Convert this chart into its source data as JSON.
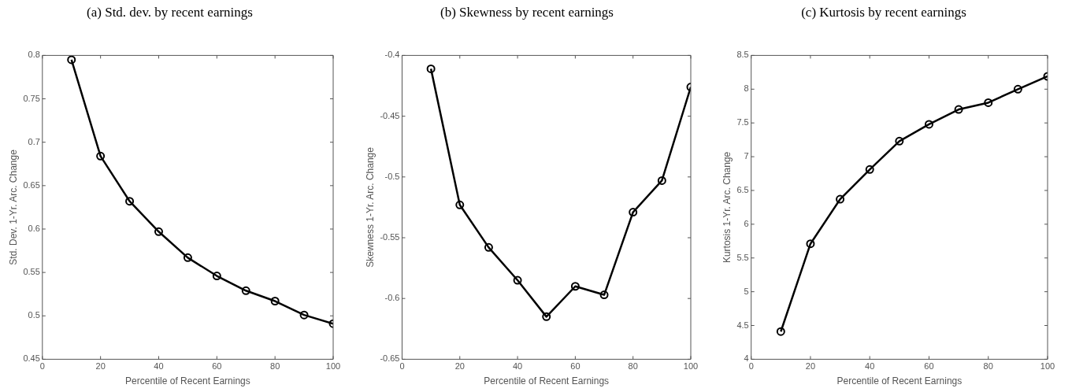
{
  "chart_data": [
    {
      "type": "line",
      "title": "(a) Std. dev. by recent earnings",
      "xlabel": "Percentile of Recent Earnings",
      "ylabel": "Std. Dev. 1-Yr. Arc. Change",
      "x": [
        10,
        20,
        30,
        40,
        50,
        60,
        70,
        80,
        90,
        100
      ],
      "series": [
        {
          "color": "#000000",
          "values": [
            0.795,
            0.684,
            0.632,
            0.597,
            0.567,
            0.546,
            0.529,
            0.517,
            0.501,
            0.491
          ]
        }
      ],
      "xlim": [
        0,
        100
      ],
      "xticks": [
        0,
        20,
        40,
        60,
        80,
        100
      ],
      "ylim": [
        0.45,
        0.8
      ],
      "yticks": [
        0.45,
        0.5,
        0.55,
        0.6,
        0.65,
        0.7,
        0.75,
        0.8
      ],
      "marker": "circle",
      "line_style": "solid",
      "grid": false,
      "legend": false
    },
    {
      "type": "line",
      "title": "(b) Skewness by recent earnings",
      "xlabel": "Percentile of Recent Earnings",
      "ylabel": "Skewness 1-Yr. Arc. Change",
      "x": [
        10,
        20,
        30,
        40,
        50,
        60,
        70,
        80,
        90,
        100
      ],
      "series": [
        {
          "color": "#000000",
          "values": [
            -0.411,
            -0.523,
            -0.558,
            -0.585,
            -0.615,
            -0.59,
            -0.597,
            -0.529,
            -0.503,
            -0.426
          ]
        }
      ],
      "xlim": [
        0,
        100
      ],
      "xticks": [
        0,
        20,
        40,
        60,
        80,
        100
      ],
      "ylim": [
        -0.65,
        -0.4
      ],
      "yticks": [
        -0.65,
        -0.6,
        -0.55,
        -0.5,
        -0.45,
        -0.4
      ],
      "marker": "circle",
      "line_style": "solid",
      "grid": false,
      "legend": false
    },
    {
      "type": "line",
      "title": "(c) Kurtosis by recent earnings",
      "xlabel": "Percentile of Recent Earnings",
      "ylabel": "Kurtosis 1-Yr. Arc. Change",
      "x": [
        10,
        20,
        30,
        40,
        50,
        60,
        70,
        80,
        90,
        100
      ],
      "series": [
        {
          "color": "#000000",
          "values": [
            4.41,
            5.71,
            6.37,
            6.81,
            7.23,
            7.48,
            7.7,
            7.8,
            8.0,
            8.19
          ]
        }
      ],
      "xlim": [
        0,
        100
      ],
      "xticks": [
        0,
        20,
        40,
        60,
        80,
        100
      ],
      "ylim": [
        4,
        8.5
      ],
      "yticks": [
        4,
        4.5,
        5,
        5.5,
        6,
        6.5,
        7,
        7.5,
        8,
        8.5
      ],
      "marker": "circle",
      "line_style": "solid",
      "grid": false,
      "legend": false
    }
  ]
}
